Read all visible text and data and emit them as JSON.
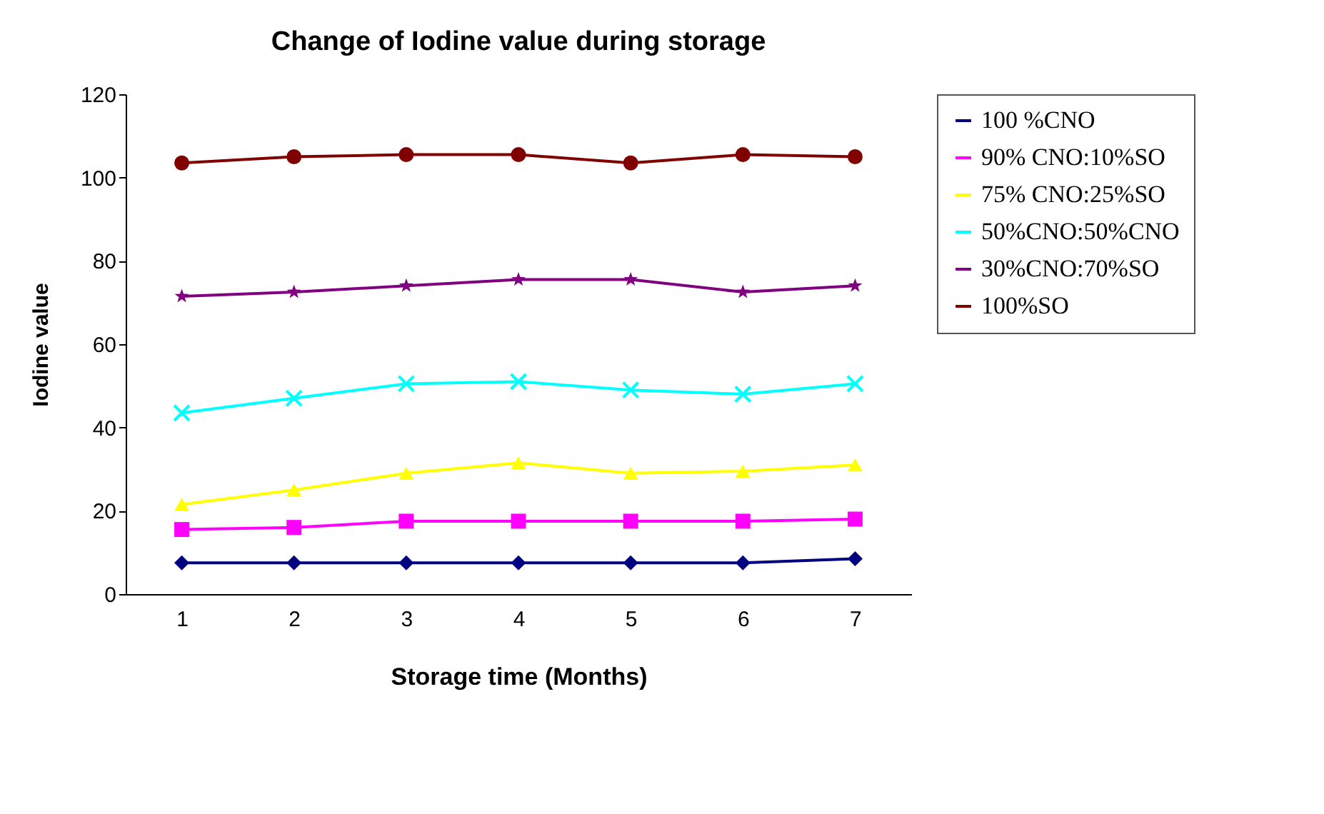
{
  "chart_data": {
    "type": "line",
    "title": "Change of Iodine value during storage",
    "xlabel": "Storage time (Months)",
    "ylabel": "Iodine value",
    "categories": [
      "1",
      "2",
      "3",
      "4",
      "5",
      "6",
      "7"
    ],
    "ylim": [
      0,
      120
    ],
    "yticks": [
      0,
      20,
      40,
      60,
      80,
      100,
      120
    ],
    "grid": false,
    "legend": "right",
    "series": [
      {
        "name": "100 %CNO",
        "color": "#000080",
        "marker": "diamond",
        "values": [
          7.5,
          7.5,
          7.5,
          7.5,
          7.5,
          7.5,
          8.5
        ]
      },
      {
        "name": "90% CNO:10%SO",
        "color": "#ff00ff",
        "marker": "square",
        "values": [
          15.5,
          16,
          17.5,
          17.5,
          17.5,
          17.5,
          18
        ]
      },
      {
        "name": "75% CNO:25%SO",
        "color": "#ffff00",
        "marker": "triangle",
        "values": [
          21.5,
          25,
          29,
          31.5,
          29,
          29.5,
          31
        ]
      },
      {
        "name": "50%CNO:50%CNO",
        "color": "#00ffff",
        "marker": "cross",
        "values": [
          43.5,
          47,
          50.5,
          51,
          49,
          48,
          50.5
        ]
      },
      {
        "name": "30%CNO:70%SO",
        "color": "#800080",
        "marker": "star",
        "values": [
          71.5,
          72.5,
          74,
          75.5,
          75.5,
          72.5,
          74
        ]
      },
      {
        "name": "100%SO",
        "color": "#800000",
        "marker": "circle",
        "values": [
          103.5,
          105,
          105.5,
          105.5,
          103.5,
          105.5,
          105
        ]
      }
    ]
  }
}
